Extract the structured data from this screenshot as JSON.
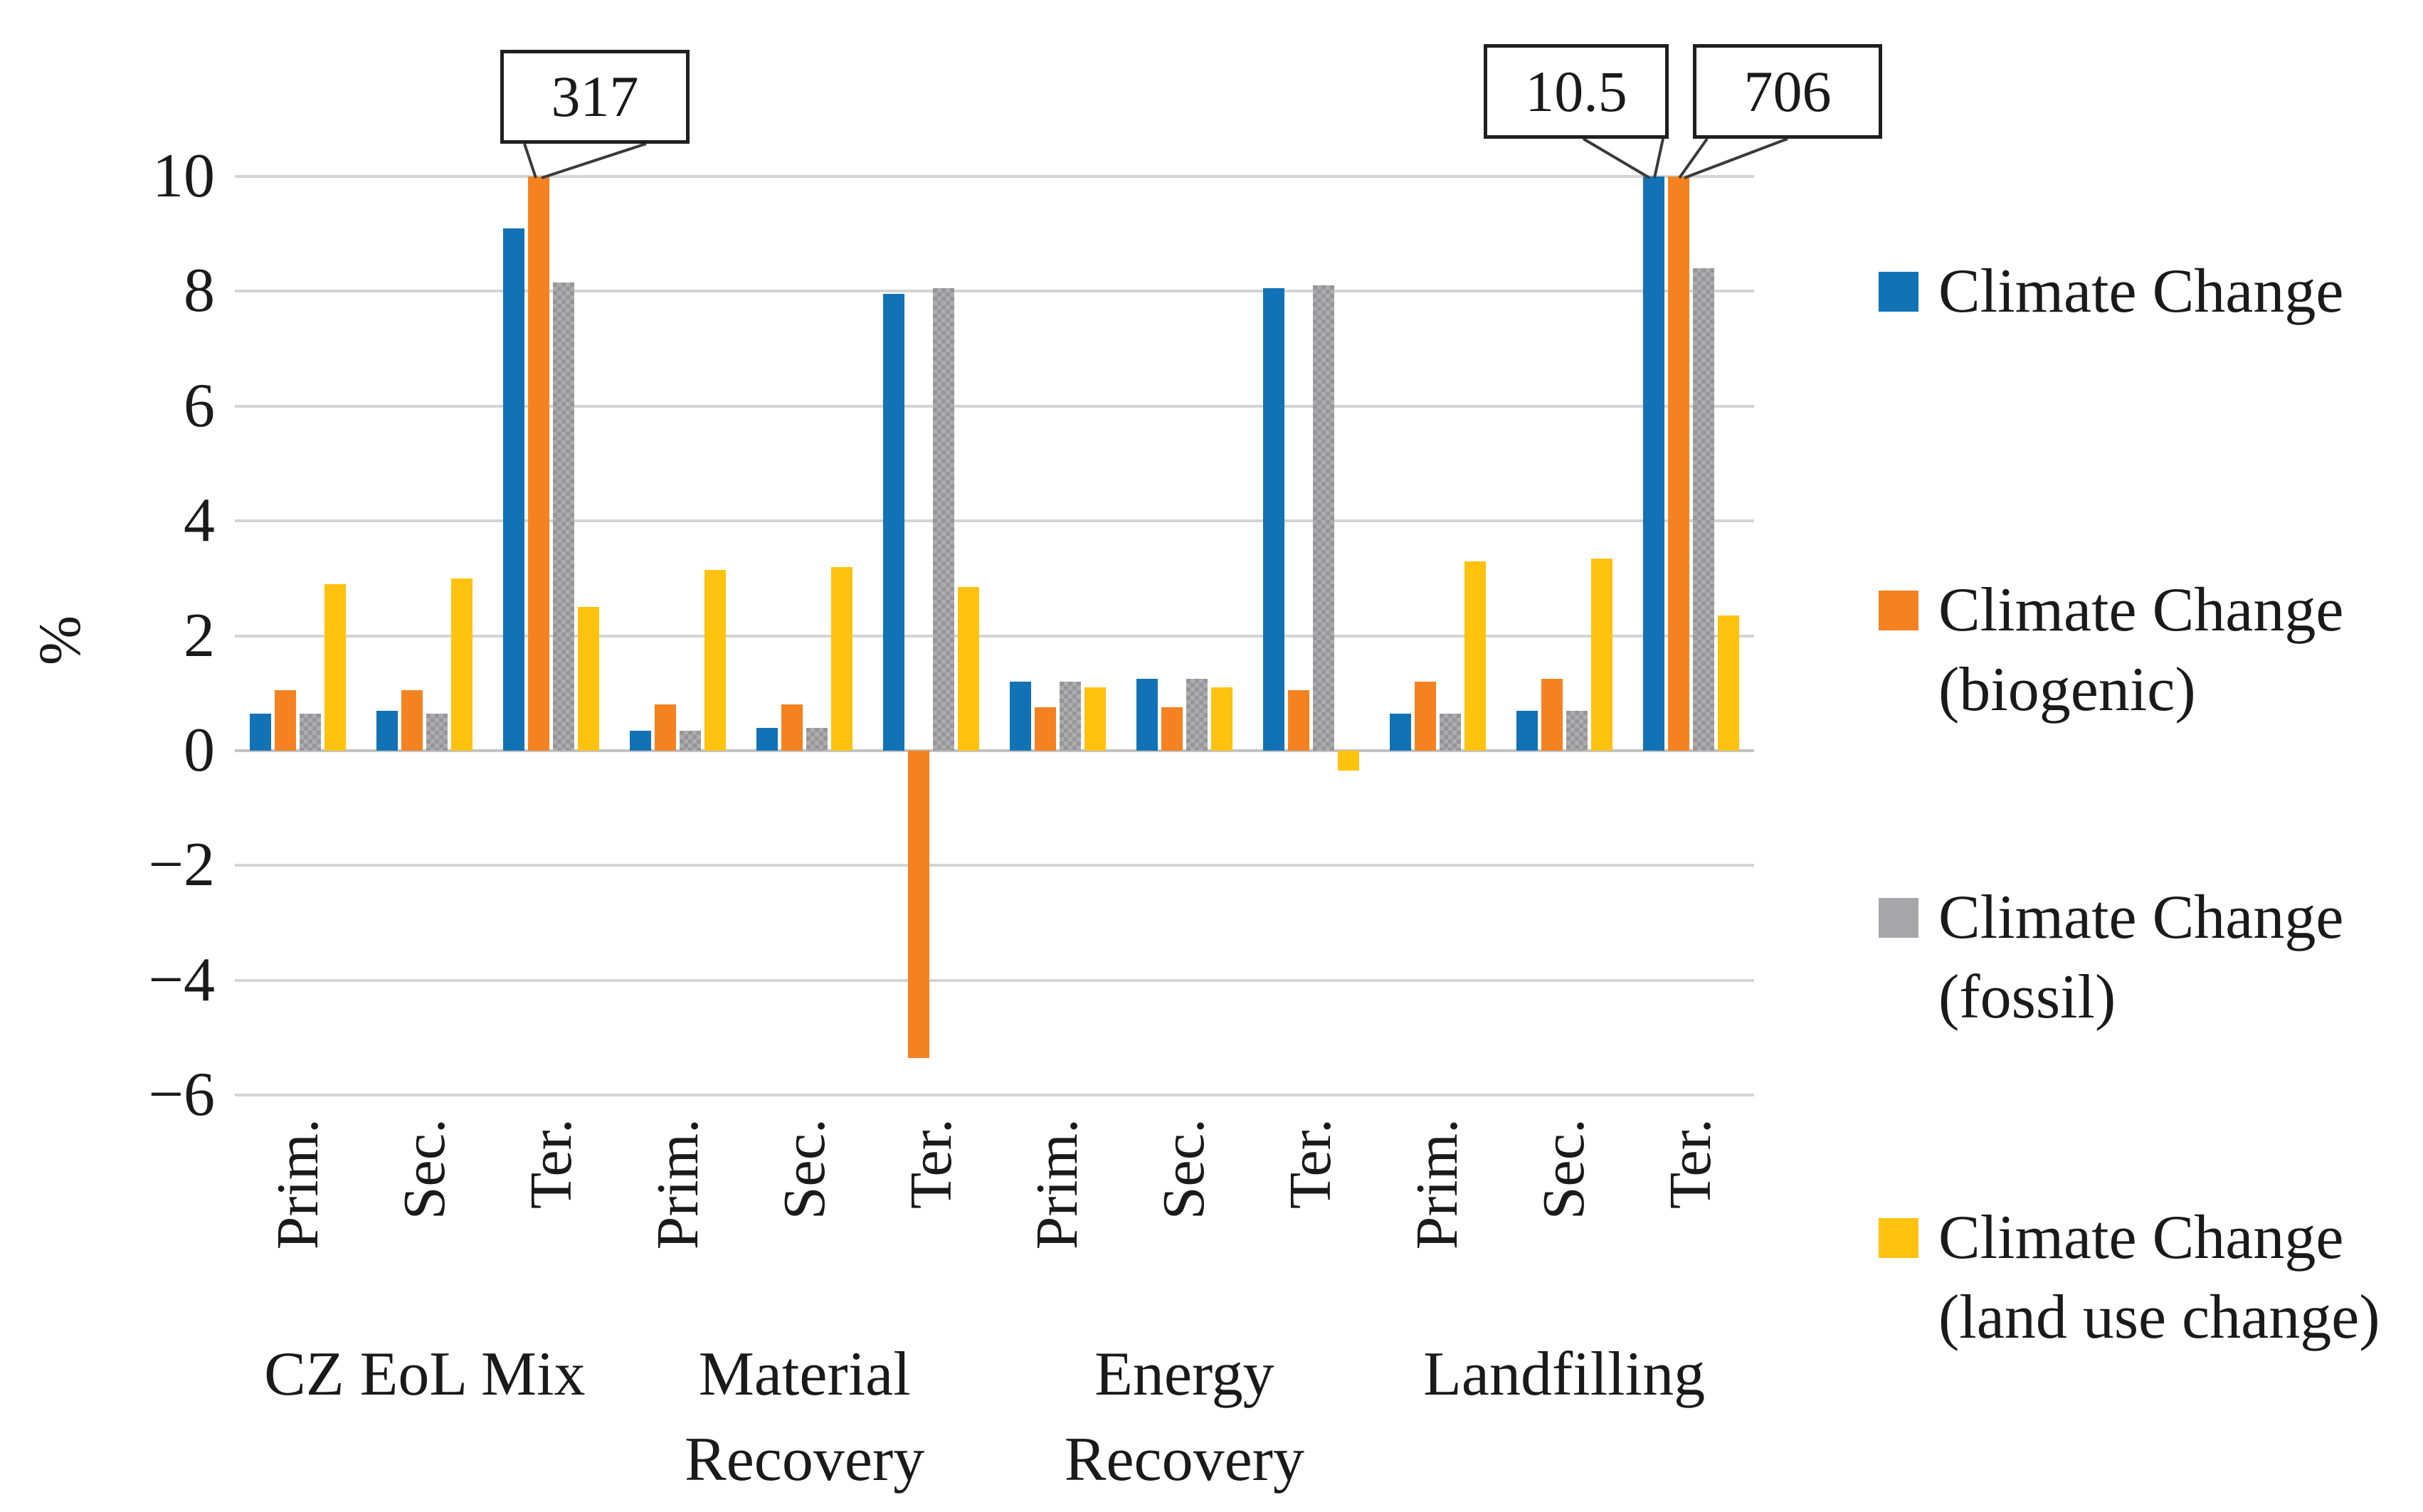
{
  "figure": {
    "background_color": "#ffffff",
    "text_color": "#1a1a1a",
    "gridline_color": "#d4d4d4"
  },
  "chart_data": {
    "type": "bar",
    "title": "",
    "ylabel": "%",
    "xlabel": "",
    "ylim": [
      -6,
      10
    ],
    "grid": "horizontal",
    "legend_position": "right",
    "clip_max": 10,
    "yticks": [
      {
        "v": 10,
        "label": "10"
      },
      {
        "v": 8,
        "label": "8"
      },
      {
        "v": 6,
        "label": "6"
      },
      {
        "v": 4,
        "label": "4"
      },
      {
        "v": 2,
        "label": "2"
      },
      {
        "v": 0,
        "label": "0"
      },
      {
        "v": -2,
        "label": "−2"
      },
      {
        "v": -4,
        "label": "−4"
      },
      {
        "v": -6,
        "label": "−6"
      }
    ],
    "groups": [
      {
        "label": "CZ EoL Mix",
        "categories": [
          "Prim.",
          "Sec.",
          "Ter."
        ]
      },
      {
        "label": "Material\nRecovery",
        "categories": [
          "Prim.",
          "Sec.",
          "Ter."
        ]
      },
      {
        "label": "Energy\nRecovery",
        "categories": [
          "Prim.",
          "Sec.",
          "Ter."
        ]
      },
      {
        "label": "Landfilling",
        "categories": [
          "Prim.",
          "Sec.",
          "Ter."
        ]
      }
    ],
    "series": [
      {
        "name": "Climate Change",
        "color": "#1272b6",
        "pattern": false,
        "values": [
          0.65,
          0.7,
          9.1,
          0.35,
          0.4,
          7.95,
          1.2,
          1.25,
          8.05,
          0.65,
          0.7,
          10.5
        ]
      },
      {
        "name": "Climate Change (biogenic)",
        "color": "#f58220",
        "pattern": false,
        "values": [
          1.05,
          1.05,
          317,
          0.8,
          0.8,
          -5.35,
          0.75,
          0.75,
          1.05,
          1.2,
          1.25,
          706
        ]
      },
      {
        "name": "Climate Change (fossil)",
        "color": "#9b9b9d",
        "pattern": true,
        "values": [
          0.65,
          0.65,
          8.15,
          0.35,
          0.4,
          8.05,
          1.2,
          1.25,
          8.1,
          0.65,
          0.7,
          8.4
        ]
      },
      {
        "name": "Climate Change (land use change)",
        "color": "#ffc20e",
        "pattern": false,
        "values": [
          2.9,
          3.0,
          2.5,
          3.15,
          3.2,
          2.85,
          1.1,
          1.1,
          -0.35,
          3.3,
          3.35,
          2.35
        ]
      }
    ],
    "annotations": [
      {
        "text": "317",
        "series_index": 1,
        "slot_index": 2,
        "note": "bar clipped at axis max"
      },
      {
        "text": "10.5",
        "series_index": 0,
        "slot_index": 11,
        "note": "bar clipped at axis max"
      },
      {
        "text": "706",
        "series_index": 1,
        "slot_index": 11,
        "note": "bar clipped at axis max"
      }
    ]
  },
  "legend": {
    "items": [
      {
        "lines": [
          "Climate Change"
        ],
        "color": "#1272b6"
      },
      {
        "lines": [
          "Climate Change",
          "(biogenic)"
        ],
        "color": "#f58220"
      },
      {
        "lines": [
          "Climate Change",
          "(fossil)"
        ],
        "color": "#a7a7a9"
      },
      {
        "lines": [
          "Climate Change",
          "(land use change)"
        ],
        "color": "#ffc20e"
      }
    ]
  }
}
